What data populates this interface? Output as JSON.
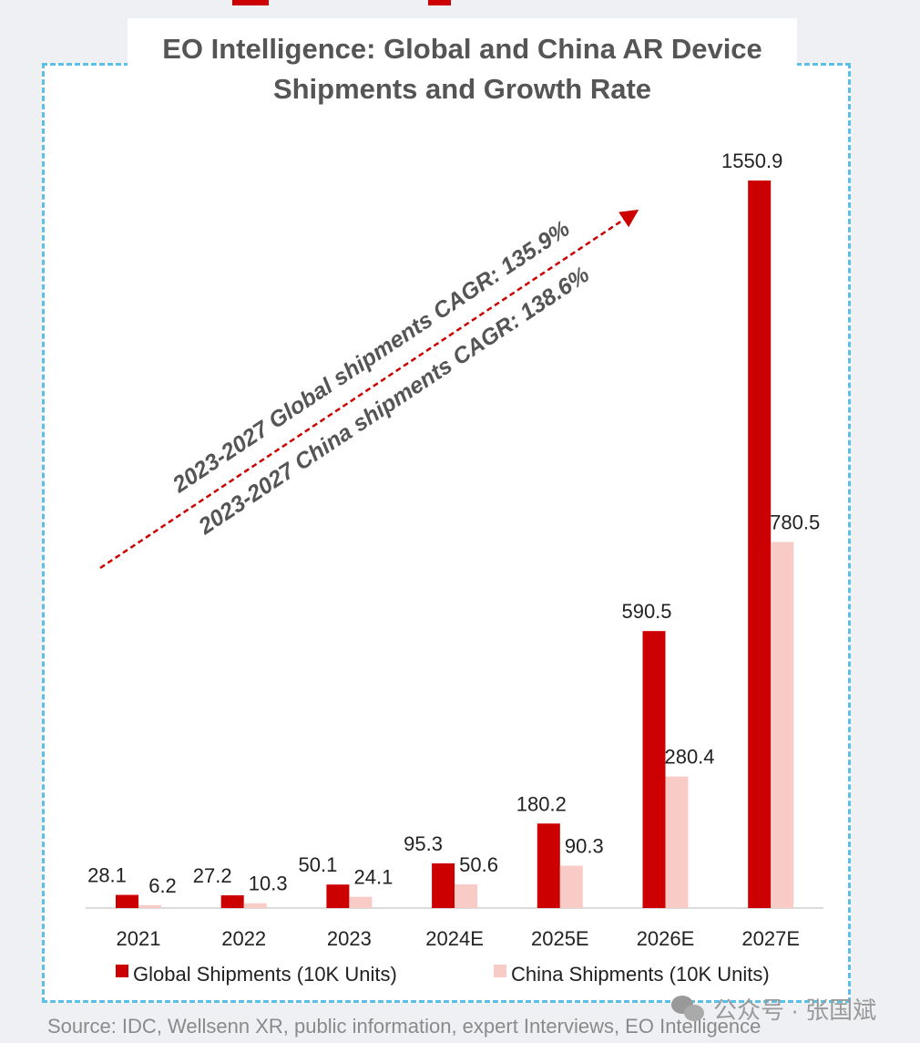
{
  "chart_data": {
    "type": "bar",
    "title": "EO Intelligence: Global and China AR Device Shipments and Growth Rate",
    "title_lines": [
      "EO Intelligence: Global and China AR Device",
      "Shipments and Growth Rate"
    ],
    "categories": [
      "2021",
      "2022",
      "2023",
      "2024E",
      "2025E",
      "2026E",
      "2027E"
    ],
    "series": [
      {
        "name": "Global Shipments (10K Units)",
        "color": "#cc0000",
        "values": [
          28.1,
          27.2,
          50.1,
          95.3,
          180.2,
          590.5,
          1550.9
        ],
        "labels": [
          "28.1",
          "27.2",
          "50.1",
          "95.3",
          "180.2",
          "590.5",
          "1550.9"
        ]
      },
      {
        "name": "China Shipments (10K Units)",
        "color": "#f8cbc6",
        "values": [
          6.2,
          10.3,
          24.1,
          50.6,
          90.3,
          280.4,
          780.5
        ],
        "labels": [
          "6.2",
          "10.3",
          "24.1",
          "50.6",
          "90.3",
          "280.4",
          "780.5"
        ]
      }
    ],
    "ylim": [
      0,
      1550.9
    ],
    "legend": "bottom",
    "annotations": [
      "2023-2027 Global shipments CAGR: 135.9%",
      "2023-2027 China shipments CAGR: 138.6%"
    ]
  },
  "source": "Source: IDC, Wellsenn XR, public information, expert Interviews, EO Intelligence",
  "watermark": "公众号 · 张国斌"
}
